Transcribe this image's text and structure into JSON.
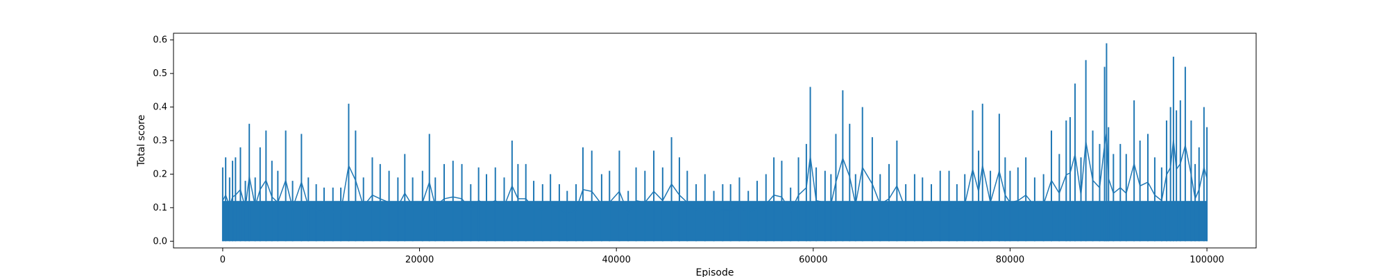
{
  "chart_data": {
    "type": "line",
    "title": "",
    "xlabel": "Episode",
    "ylabel": "Total score",
    "xlim": [
      -5000,
      105000
    ],
    "ylim": [
      -0.02,
      0.62
    ],
    "xticks": [
      0,
      20000,
      40000,
      60000,
      80000,
      100000
    ],
    "yticks": [
      0.0,
      0.1,
      0.2,
      0.3,
      0.4,
      0.5,
      0.6
    ],
    "xtick_labels": [
      "0",
      "20000",
      "40000",
      "60000",
      "80000",
      "100000"
    ],
    "ytick_labels": [
      "0.0",
      "0.1",
      "0.2",
      "0.3",
      "0.4",
      "0.5",
      "0.6"
    ],
    "grid": false,
    "legend": "none",
    "series_color": "#1f77b4",
    "series": [
      {
        "x": [
          0,
          300,
          700,
          1000,
          1300,
          1800,
          2300,
          2700,
          3300,
          3800,
          4400,
          5000,
          5600,
          6400,
          7100,
          8000,
          8700,
          9500,
          10300,
          11200,
          12000,
          12800,
          13500,
          14300,
          15200,
          16000,
          16900,
          17800,
          18500,
          19300,
          20300,
          21000,
          21600,
          22500,
          23400,
          24300,
          25200,
          26000,
          26800,
          27700,
          28600,
          29400,
          30000,
          30800,
          31600,
          32500,
          33300,
          34200,
          35000,
          35900,
          36600,
          37500,
          38500,
          39300,
          40300,
          41200,
          42000,
          42900,
          43800,
          44700,
          45600,
          46400,
          47200,
          48100,
          49000,
          49900,
          50800,
          51600,
          52500,
          53400,
          54300,
          55200,
          56000,
          56800,
          57700,
          58500,
          59300,
          59700,
          60300,
          61200,
          61800,
          62300,
          63000,
          63700,
          64300,
          65000,
          66000,
          66800,
          67700,
          68500,
          69400,
          70300,
          71100,
          72000,
          72900,
          73800,
          74600,
          75400,
          76200,
          76800,
          77200,
          78000,
          78900,
          79500,
          80000,
          80800,
          81600,
          82500,
          83400,
          84200,
          85000,
          85700,
          86100,
          86600,
          87200,
          87700,
          88400,
          89100,
          89600,
          89800,
          90000,
          90500,
          91200,
          91800,
          92600,
          93200,
          94000,
          94700,
          95400,
          95900,
          96300,
          96600,
          96900,
          97300,
          97800,
          98400,
          98800,
          99200,
          99700,
          100000
        ],
        "y": [
          0.22,
          0.25,
          0.19,
          0.24,
          0.25,
          0.28,
          0.18,
          0.35,
          0.19,
          0.28,
          0.33,
          0.24,
          0.21,
          0.33,
          0.18,
          0.32,
          0.19,
          0.17,
          0.16,
          0.16,
          0.16,
          0.41,
          0.33,
          0.19,
          0.25,
          0.23,
          0.21,
          0.19,
          0.26,
          0.19,
          0.21,
          0.32,
          0.19,
          0.23,
          0.24,
          0.23,
          0.17,
          0.22,
          0.2,
          0.22,
          0.19,
          0.3,
          0.23,
          0.23,
          0.18,
          0.17,
          0.2,
          0.17,
          0.15,
          0.17,
          0.28,
          0.27,
          0.2,
          0.21,
          0.27,
          0.15,
          0.22,
          0.21,
          0.27,
          0.22,
          0.31,
          0.25,
          0.21,
          0.17,
          0.2,
          0.15,
          0.17,
          0.17,
          0.19,
          0.15,
          0.18,
          0.2,
          0.25,
          0.24,
          0.16,
          0.25,
          0.29,
          0.46,
          0.22,
          0.21,
          0.2,
          0.32,
          0.45,
          0.35,
          0.2,
          0.4,
          0.31,
          0.2,
          0.23,
          0.3,
          0.17,
          0.2,
          0.19,
          0.17,
          0.21,
          0.21,
          0.17,
          0.2,
          0.39,
          0.27,
          0.41,
          0.21,
          0.38,
          0.25,
          0.21,
          0.22,
          0.25,
          0.19,
          0.2,
          0.33,
          0.26,
          0.36,
          0.37,
          0.47,
          0.25,
          0.54,
          0.33,
          0.29,
          0.52,
          0.59,
          0.34,
          0.26,
          0.29,
          0.26,
          0.42,
          0.3,
          0.32,
          0.25,
          0.22,
          0.36,
          0.4,
          0.55,
          0.39,
          0.42,
          0.52,
          0.36,
          0.23,
          0.28,
          0.4,
          0.34
        ]
      }
    ]
  }
}
